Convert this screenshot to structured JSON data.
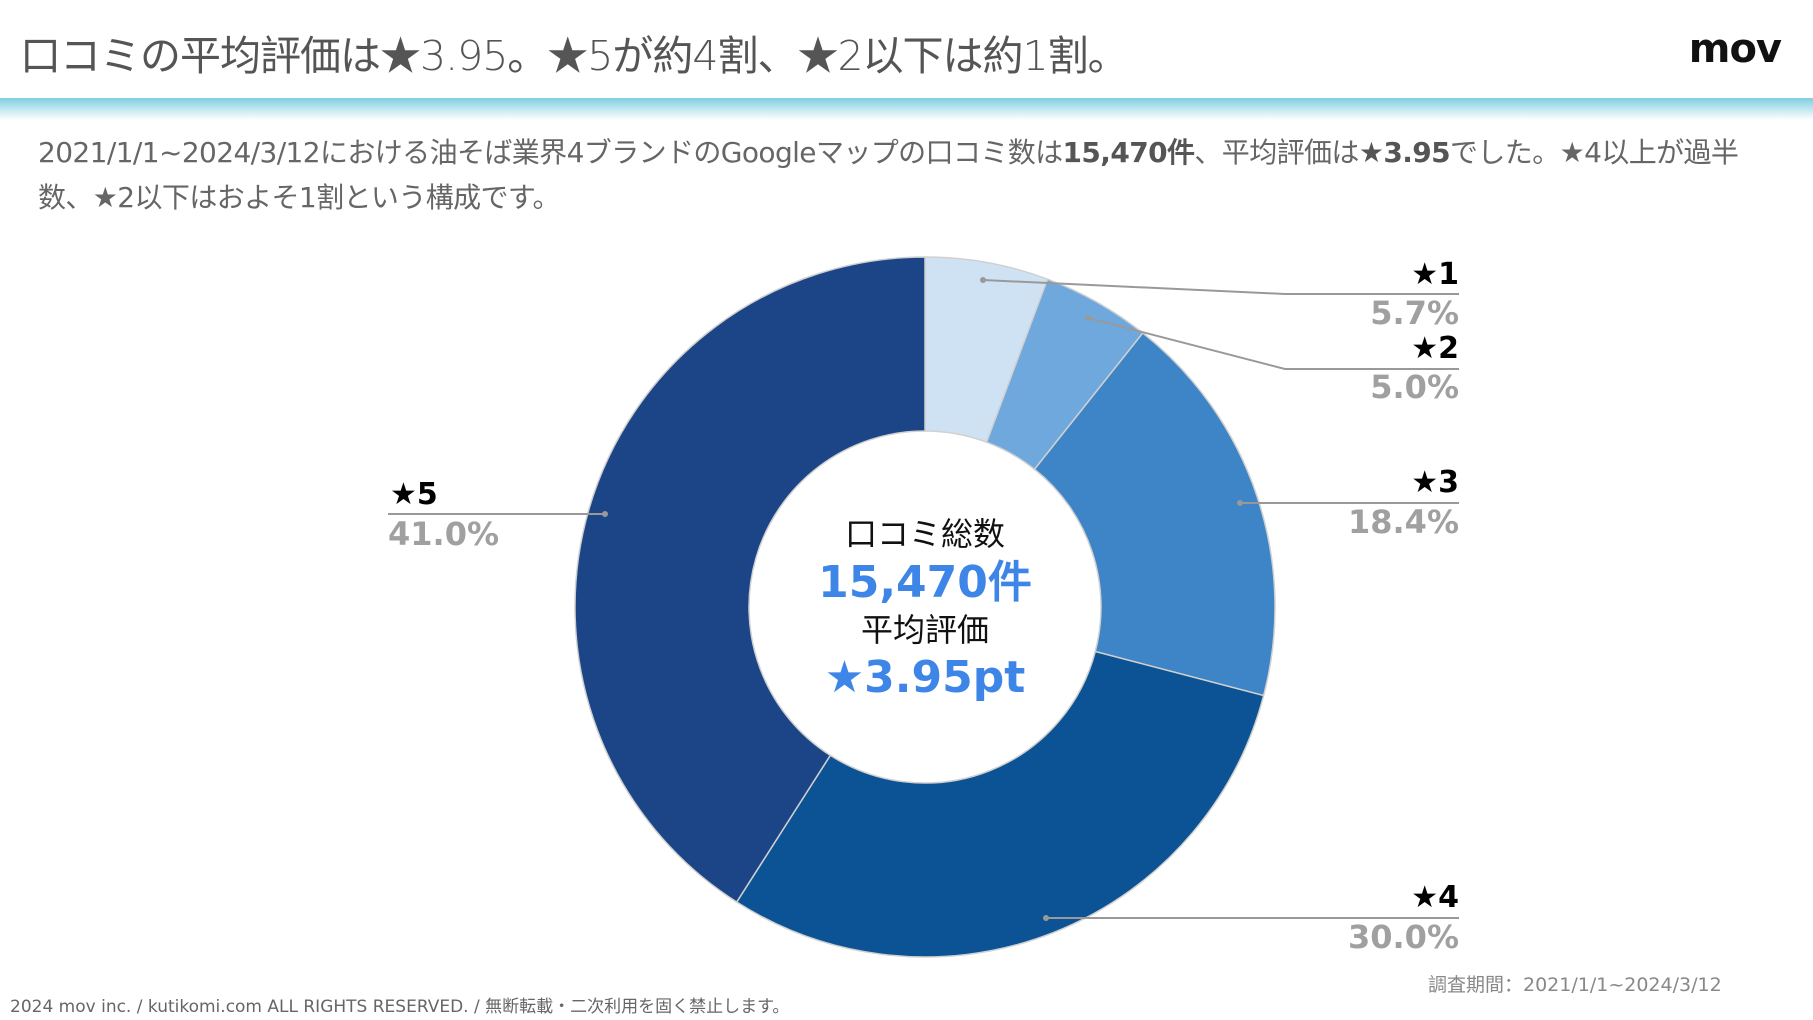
{
  "header": {
    "title": "口コミの平均評価は★3.95。★5が約4割、★2以下は約1割。",
    "logo": "mov"
  },
  "description": {
    "part1": "2021/1/1~2024/3/12における油そば業界4ブランドのGoogleマップの口コミ数は",
    "bold1": "15,470件",
    "part2": "、平均評価は",
    "bold2": "★3.95",
    "part3": "でした。★4以上が過半数、★2以下はおよそ1割という構成です。"
  },
  "chart_data": {
    "type": "pie",
    "donut": true,
    "start": "12 o'clock, clockwise",
    "categories": [
      "★1",
      "★2",
      "★3",
      "★4",
      "★5"
    ],
    "values": [
      5.7,
      5.0,
      18.4,
      30.0,
      41.0
    ],
    "value_labels": [
      "5.7%",
      "5.0%",
      "18.4%",
      "30.0%",
      "41.0%"
    ],
    "colors": [
      "#cfe2f3",
      "#6fa8dc",
      "#3d85c6",
      "#0b5394",
      "#1c4587"
    ],
    "center": {
      "label1": "口コミ総数",
      "value1": "15,470件",
      "label2": "平均評価",
      "value2": "★3.95pt",
      "accent": "#3d85e6"
    }
  },
  "footer": {
    "copyright": "2024 mov inc. / kutikomi.com ALL RIGHTS RESERVED. / 無断転載・二次利用を固く禁止します。",
    "period": "調査期間：2021/1/1~2024/3/12"
  }
}
